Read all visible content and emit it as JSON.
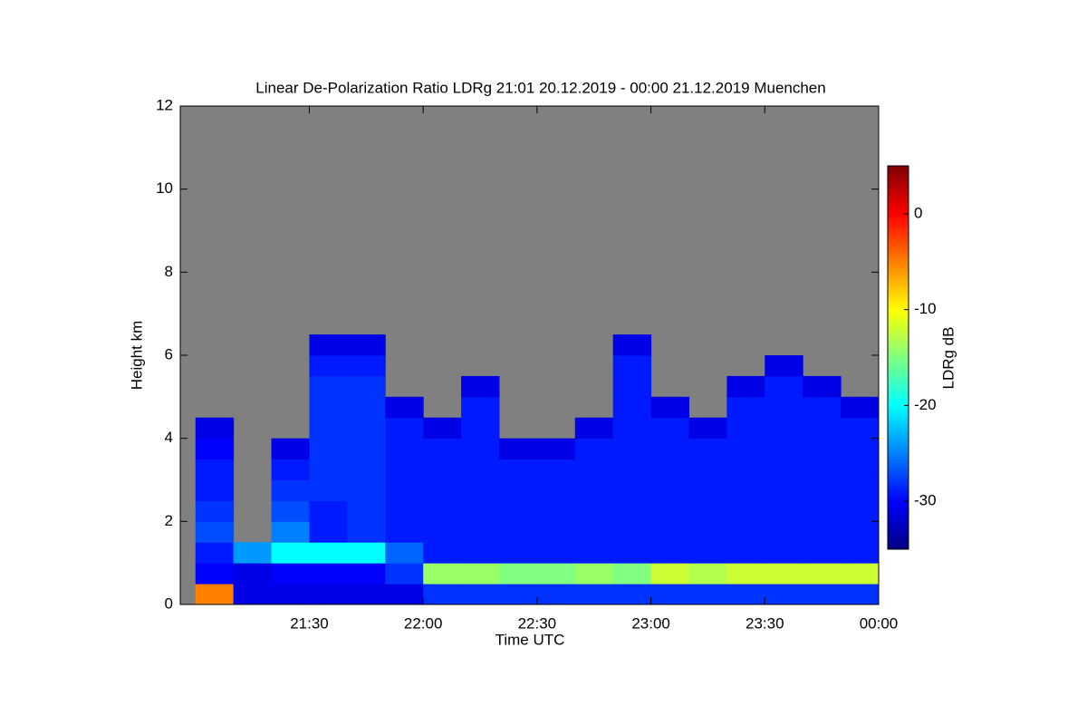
{
  "chart_data": {
    "type": "heatmap",
    "title": "Linear De-Polarization Ratio LDRg   21:01 20.12.2019 - 00:00 21.12.2019 Muenchen",
    "x_label": "Time UTC",
    "y_label": "Height km",
    "colorbar_label": "LDRg dB",
    "xlim": [
      "20:56",
      "00:00"
    ],
    "xticks": [
      "21:30",
      "22:00",
      "22:30",
      "23:00",
      "23:30",
      "00:00"
    ],
    "ylim": [
      0,
      12
    ],
    "yticks": [
      0,
      2,
      4,
      6,
      8,
      10,
      12
    ],
    "clim": [
      -35,
      5
    ],
    "cticks": [
      0,
      -10,
      -20,
      -30
    ],
    "colormap": "jet",
    "no_data_color": "#808080",
    "x": [
      "21:00",
      "21:10",
      "21:20",
      "21:30",
      "21:40",
      "21:50",
      "22:00",
      "22:10",
      "22:20",
      "22:30",
      "22:40",
      "22:50",
      "23:00",
      "23:10",
      "23:20",
      "23:30",
      "23:40",
      "23:50",
      "00:00"
    ],
    "y": [
      0,
      0.5,
      1,
      1.5,
      2,
      2.5,
      3,
      3.5,
      4,
      4.5,
      5,
      5.5,
      6,
      6.5
    ],
    "z": [
      [
        -5,
        -31,
        -31,
        -31,
        -31,
        -31,
        -28,
        -28,
        -28,
        -28,
        -28,
        -28,
        -28,
        -28,
        -28,
        -28,
        -28,
        -28
      ],
      [
        -30,
        -31,
        -30,
        -30,
        -30,
        -28,
        -14,
        -14,
        -15,
        -15,
        -14,
        -15,
        -12,
        -13,
        -12,
        -12,
        -12,
        -12
      ],
      [
        -29,
        -24,
        -20,
        -20,
        -20,
        -26,
        -29,
        -29,
        -29,
        -29,
        -29,
        -29,
        -29,
        -29,
        -29,
        -29,
        -29,
        -29
      ],
      [
        -27,
        null,
        -25,
        -29,
        -28,
        -29,
        -29,
        -29,
        -29,
        -29,
        -29,
        -29,
        -29,
        -29,
        -29,
        -29,
        -29,
        -29
      ],
      [
        -28,
        null,
        -27,
        -29,
        -28,
        -29,
        -29,
        -29,
        -29,
        -29,
        -29,
        -29,
        -29,
        -29,
        -29,
        -29,
        -29,
        -29
      ],
      [
        -29,
        null,
        -28,
        -28,
        -28,
        -29,
        -29,
        -29,
        -29,
        -29,
        -29,
        -29,
        -29,
        -29,
        -29,
        -29,
        -29,
        -29
      ],
      [
        -29,
        null,
        -29,
        -28,
        -28,
        -29,
        -29,
        -29,
        -29,
        -29,
        -29,
        -29,
        -29,
        -29,
        -29,
        -29,
        -29,
        -29
      ],
      [
        -30,
        null,
        -31,
        -28,
        -28,
        -29,
        -29,
        -29,
        -31,
        -31,
        -29,
        -29,
        -29,
        -29,
        -29,
        -29,
        -29,
        -29
      ],
      [
        -31,
        null,
        null,
        -28,
        -28,
        -29,
        -31,
        -29,
        null,
        null,
        -31,
        -29,
        -29,
        -31,
        -29,
        -29,
        -29,
        -29
      ],
      [
        null,
        null,
        null,
        -28,
        -28,
        -31,
        null,
        -29,
        null,
        null,
        null,
        -29,
        -31,
        null,
        -29,
        -29,
        -29,
        -31
      ],
      [
        null,
        null,
        null,
        -28,
        -28,
        null,
        null,
        -31,
        null,
        null,
        null,
        -29,
        null,
        null,
        -31,
        -29,
        -31,
        null
      ],
      [
        null,
        null,
        null,
        -29,
        -29,
        null,
        null,
        null,
        null,
        null,
        null,
        -29,
        null,
        null,
        null,
        -31,
        null,
        null
      ],
      [
        null,
        null,
        null,
        -31,
        -31,
        null,
        null,
        null,
        null,
        null,
        null,
        -31,
        null,
        null,
        null,
        null,
        null,
        null
      ]
    ]
  }
}
